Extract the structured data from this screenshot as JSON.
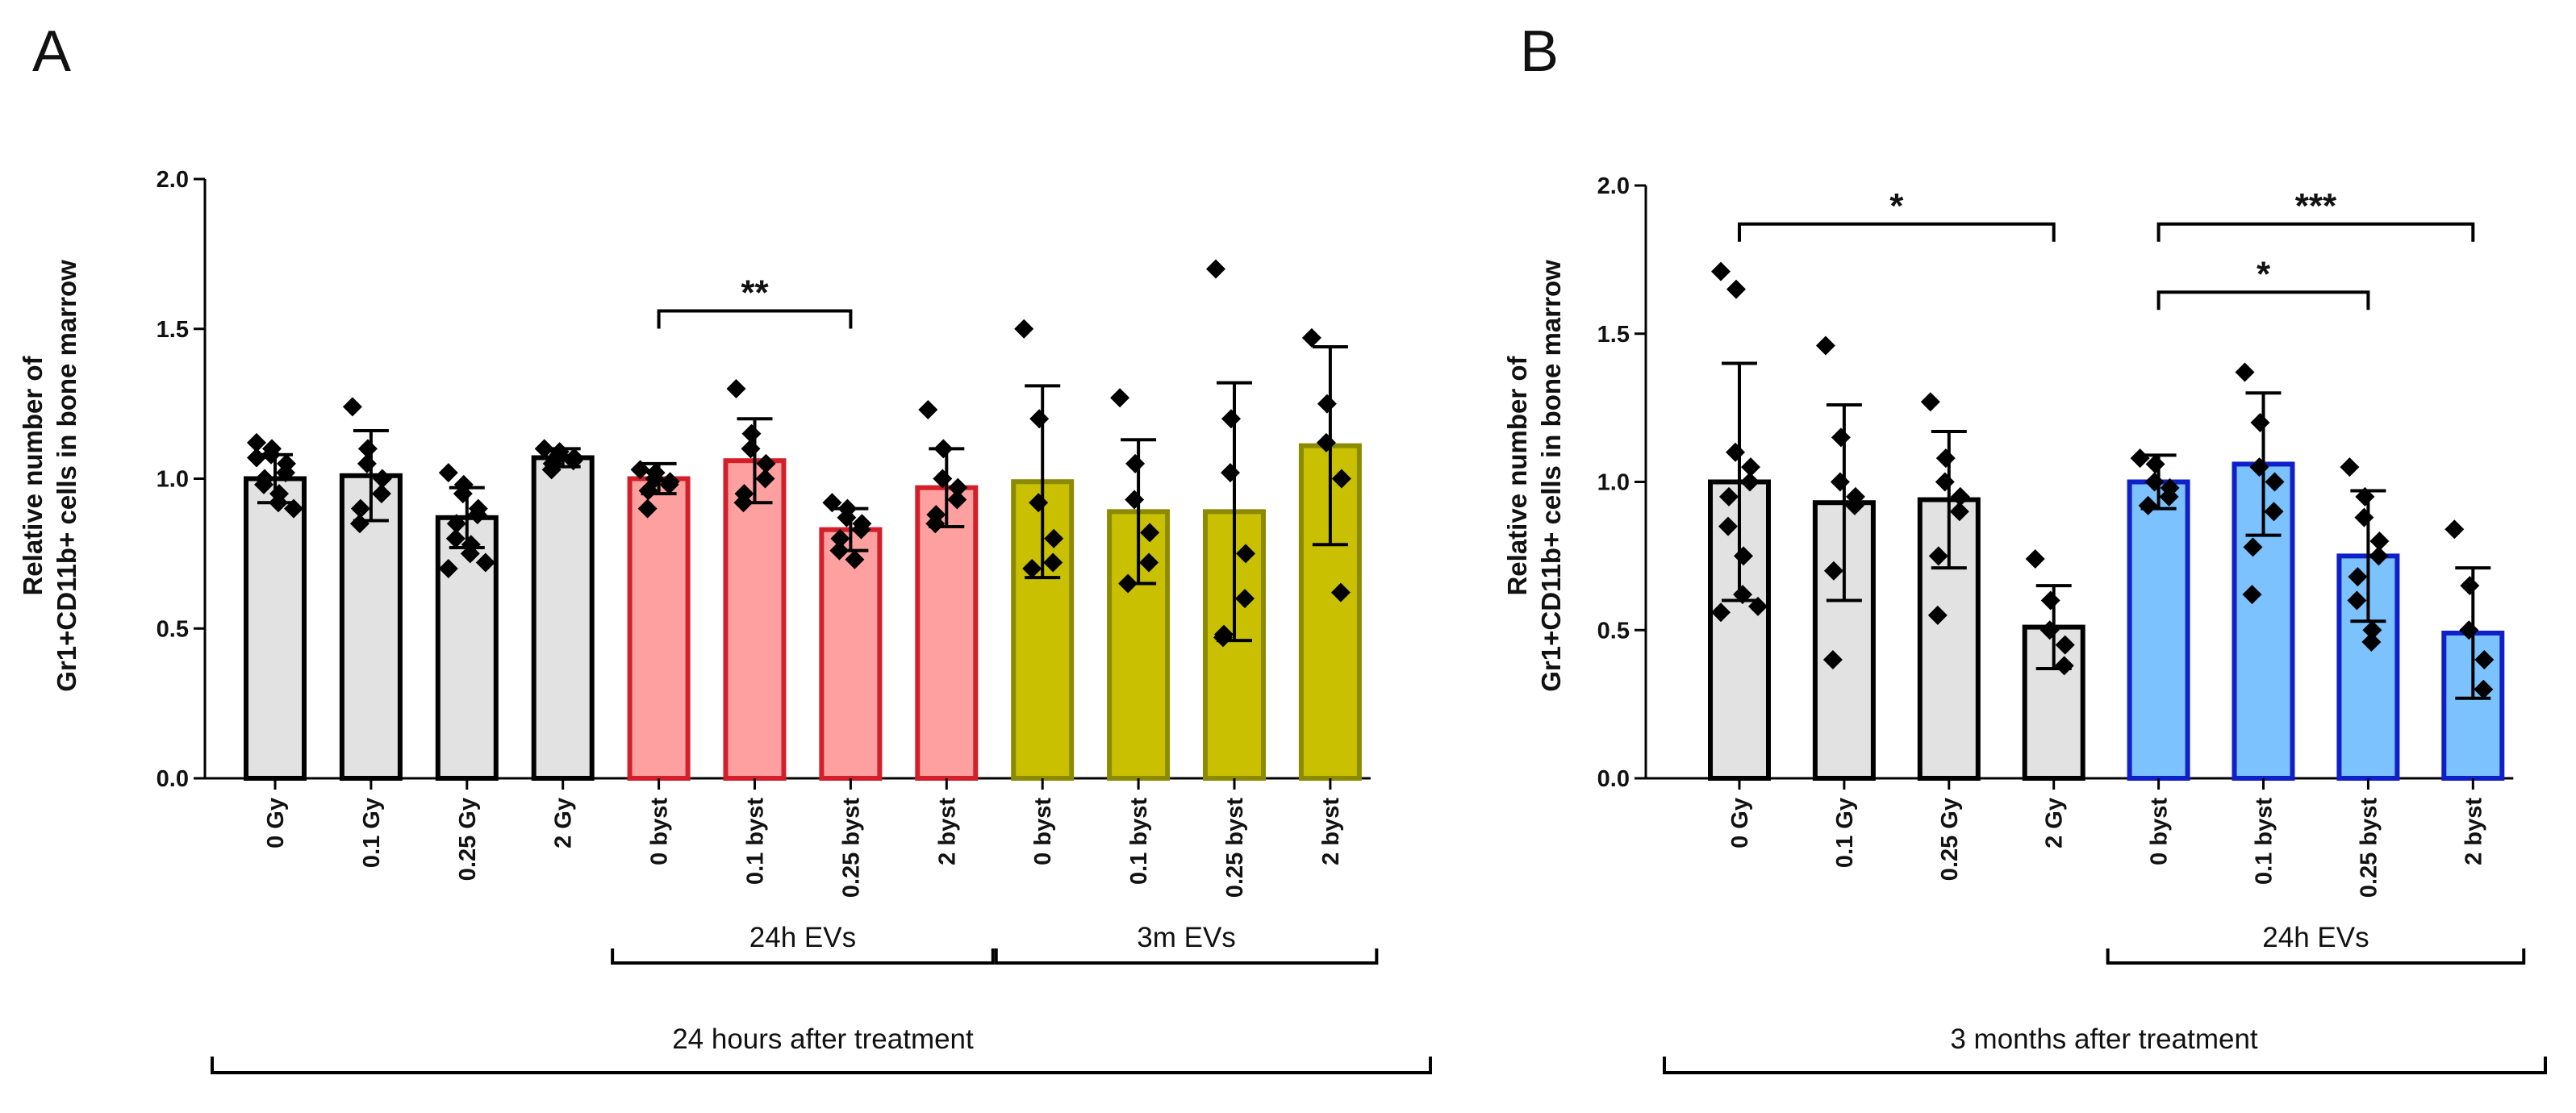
{
  "chart_data": [
    {
      "panel": "A",
      "type": "bar",
      "ylabel": [
        "Relative number of",
        "Gr1+CD11b+ cells in bone marrow"
      ],
      "ylim": [
        0,
        2.0
      ],
      "yticks": [
        0.0,
        0.5,
        1.0,
        1.5,
        2.0
      ],
      "ytick_labels": [
        "0.0",
        "0.5",
        "1.0",
        "1.5",
        "2.0"
      ],
      "categories": [
        "0 Gy",
        "0.1 Gy",
        "0.25 Gy",
        "2 Gy",
        "0 byst",
        "0.1 byst",
        "0.25 byst",
        "2 byst",
        "0 byst",
        "0.1 byst",
        "0.25 byst",
        "2 byst"
      ],
      "means": [
        1.0,
        1.01,
        0.87,
        1.07,
        1.0,
        1.06,
        0.83,
        0.97,
        0.99,
        0.89,
        0.89,
        1.11
      ],
      "sd": [
        0.08,
        0.15,
        0.1,
        0.03,
        0.05,
        0.14,
        0.07,
        0.13,
        0.32,
        0.24,
        0.43,
        0.33
      ],
      "points": [
        [
          1.12,
          1.1,
          1.08,
          1.05,
          1.02,
          1.0,
          0.98,
          0.95,
          0.92,
          0.9,
          1.07
        ],
        [
          1.24,
          1.1,
          1.05,
          1.0,
          0.95,
          0.9,
          0.85
        ],
        [
          1.02,
          0.98,
          0.95,
          0.9,
          0.88,
          0.85,
          0.8,
          0.78,
          0.75,
          0.72,
          0.7
        ],
        [
          1.1,
          1.09,
          1.08,
          1.07,
          1.06,
          1.05,
          1.03
        ],
        [
          1.03,
          1.02,
          1.0,
          0.99,
          0.98,
          0.96,
          0.9
        ],
        [
          1.3,
          1.15,
          1.1,
          1.05,
          1.0,
          0.95,
          0.92
        ],
        [
          0.92,
          0.9,
          0.87,
          0.85,
          0.83,
          0.8,
          0.76,
          0.73
        ],
        [
          1.23,
          1.1,
          1.0,
          0.97,
          0.93,
          0.88,
          0.85
        ],
        [
          1.5,
          1.2,
          0.92,
          0.8,
          0.72,
          0.7
        ],
        [
          1.27,
          1.05,
          0.93,
          0.82,
          0.72,
          0.65
        ],
        [
          1.7,
          1.2,
          1.02,
          0.75,
          0.6,
          0.48,
          0.47
        ],
        [
          1.47,
          1.25,
          1.12,
          1.0,
          0.62
        ]
      ],
      "bar_style": [
        "gray",
        "gray",
        "gray",
        "gray",
        "red",
        "red",
        "red",
        "red",
        "olive",
        "olive",
        "olive",
        "olive"
      ],
      "significance": [
        {
          "from": 4,
          "to": 6,
          "label": "**",
          "y": 1.56
        }
      ],
      "groups": [
        {
          "from": 4,
          "to": 7,
          "label": "24h EVs"
        },
        {
          "from": 8,
          "to": 11,
          "label": "3m EVs"
        }
      ],
      "overall_label": "24 hours after treatment"
    },
    {
      "panel": "B",
      "type": "bar",
      "ylabel": [
        "Relative number of",
        "Gr1+CD11b+ cells in bone marrow"
      ],
      "ylim": [
        0,
        2.0
      ],
      "yticks": [
        0.0,
        0.5,
        1.0,
        1.5,
        2.0
      ],
      "ytick_labels": [
        "0.0",
        "0.5",
        "1.0",
        "1.5",
        "2.0"
      ],
      "categories": [
        "0 Gy",
        "0.1 Gy",
        "0.25 Gy",
        "2 Gy",
        "0 byst",
        "0.1 byst",
        "0.25 byst",
        "2 byst"
      ],
      "means": [
        1.0,
        0.93,
        0.94,
        0.51,
        1.0,
        1.06,
        0.75,
        0.49
      ],
      "sd": [
        0.4,
        0.33,
        0.23,
        0.14,
        0.09,
        0.24,
        0.22,
        0.22
      ],
      "points": [
        [
          1.71,
          1.65,
          1.1,
          1.05,
          1.0,
          0.95,
          0.85,
          0.75,
          0.62,
          0.58,
          0.56
        ],
        [
          1.46,
          1.15,
          1.0,
          0.95,
          0.92,
          0.7,
          0.4
        ],
        [
          1.27,
          1.08,
          1.0,
          0.95,
          0.9,
          0.75,
          0.55
        ],
        [
          0.74,
          0.6,
          0.5,
          0.45,
          0.38
        ],
        [
          1.08,
          1.06,
          1.0,
          0.98,
          0.95,
          0.92
        ],
        [
          1.37,
          1.2,
          1.05,
          1.0,
          0.9,
          0.78,
          0.62
        ],
        [
          1.05,
          0.95,
          0.88,
          0.8,
          0.75,
          0.68,
          0.6,
          0.5,
          0.46
        ],
        [
          0.84,
          0.65,
          0.5,
          0.4,
          0.3
        ]
      ],
      "bar_style": [
        "gray",
        "gray",
        "gray",
        "gray",
        "blue",
        "blue",
        "blue",
        "blue"
      ],
      "significance": [
        {
          "from": 0,
          "to": 3,
          "label": "*",
          "y": 1.87
        },
        {
          "from": 4,
          "to": 7,
          "label": "***",
          "y": 1.87
        },
        {
          "from": 4,
          "to": 6,
          "label": "*",
          "y": 1.64
        }
      ],
      "groups": [
        {
          "from": 4,
          "to": 7,
          "label": "24h EVs"
        }
      ],
      "overall_label": "3 months after treatment"
    }
  ],
  "colors": {
    "gray": {
      "fill": "#e2e2e2",
      "stroke": "#000000"
    },
    "red": {
      "fill": "#ffa0a0",
      "stroke": "#d21f2a"
    },
    "olive": {
      "fill": "#c8c000",
      "stroke": "#8c8a00"
    },
    "blue": {
      "fill": "#7cc2ff",
      "stroke": "#1020c8"
    },
    "ink": "#000000"
  }
}
